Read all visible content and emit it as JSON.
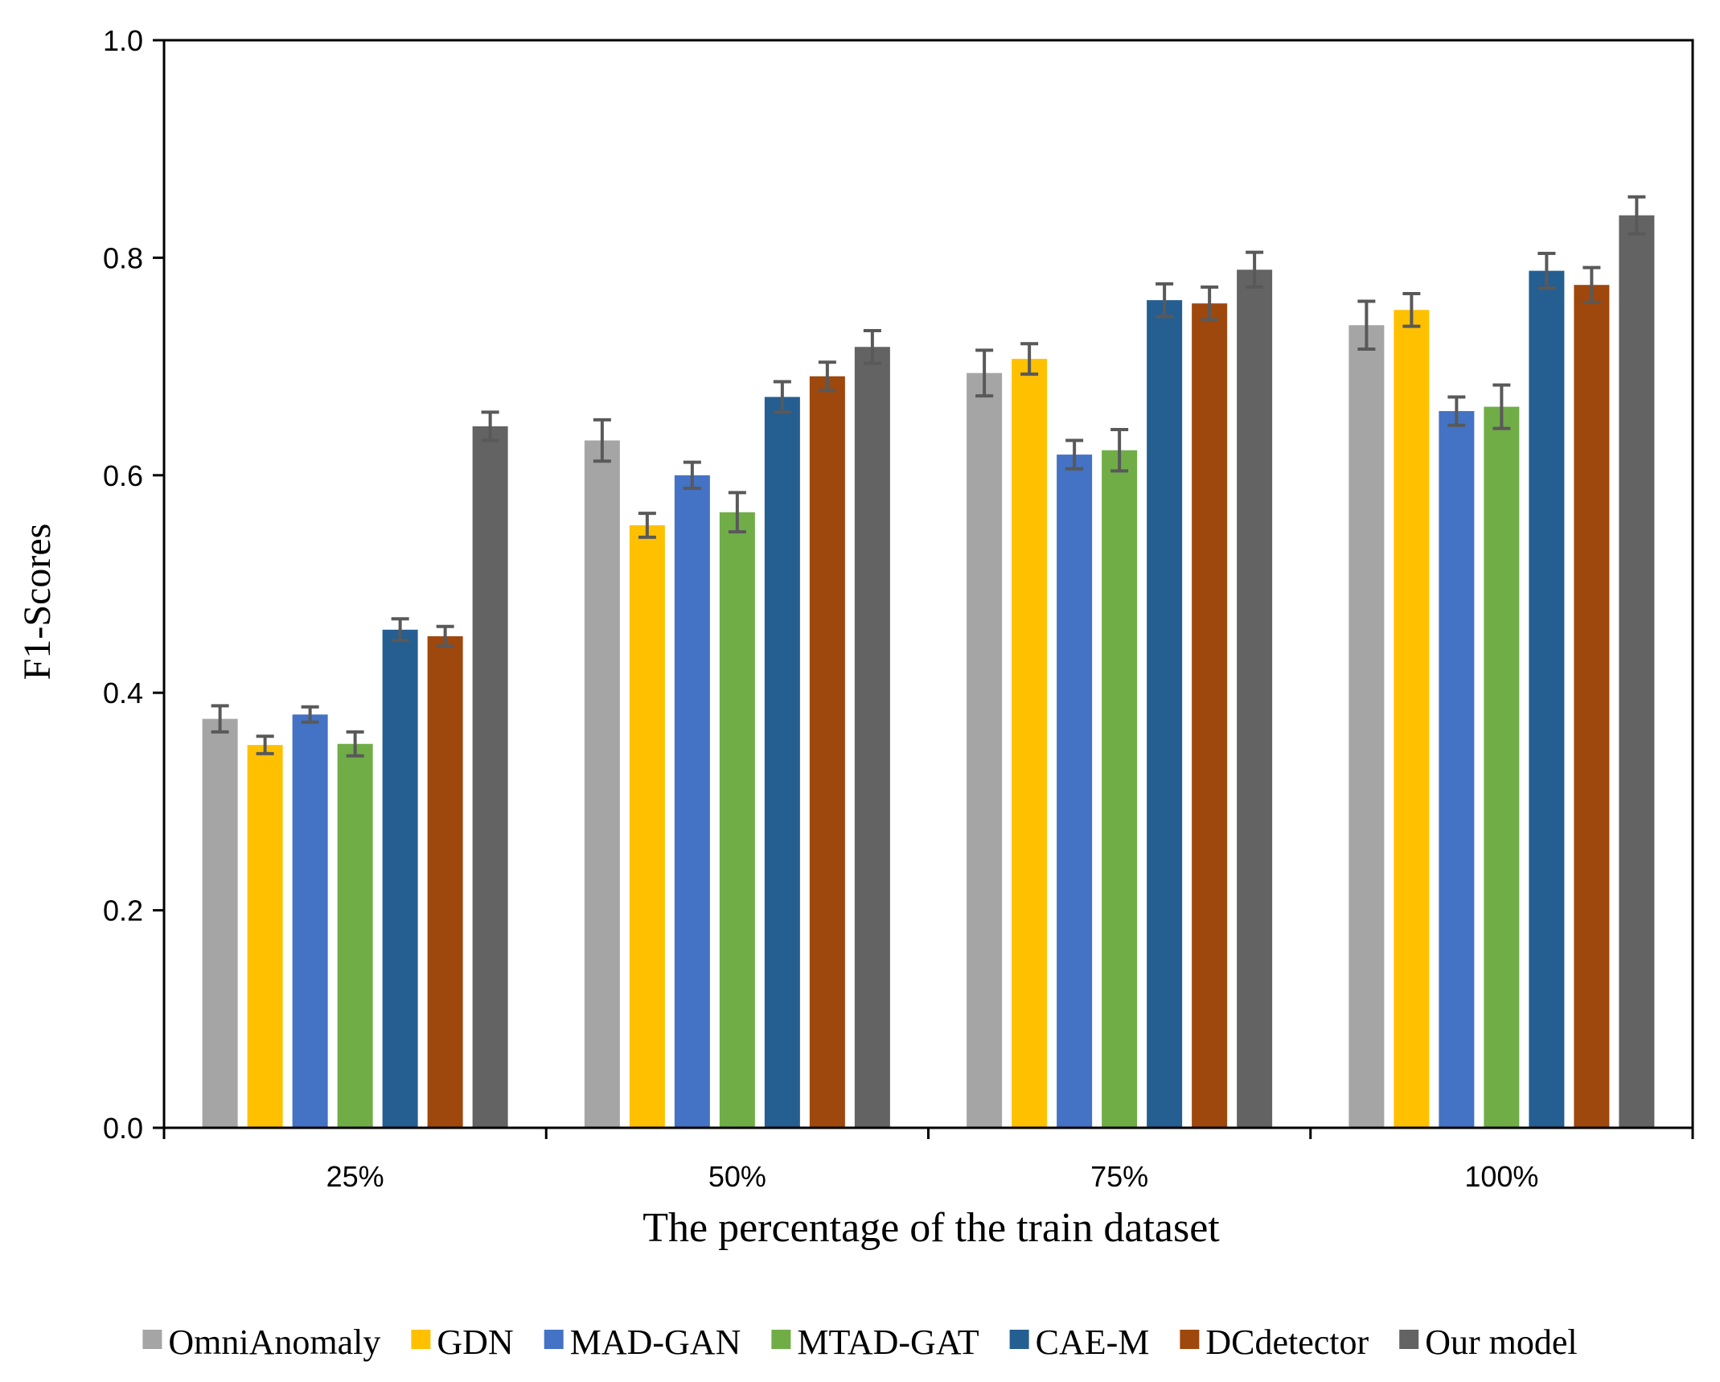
{
  "chart_data": {
    "type": "bar",
    "title": "",
    "xlabel": "The percentage of the train dataset",
    "ylabel": "F1-Scores",
    "ylim": [
      0,
      1.0
    ],
    "yticks": [
      "0.0",
      "0.2",
      "0.4",
      "0.6",
      "0.8",
      "1.0"
    ],
    "grid": false,
    "legend_position": "bottom",
    "categories": [
      "25%",
      "50%",
      "75%",
      "100%"
    ],
    "series": [
      {
        "name": "OmniAnomaly",
        "color": "#A5A5A5",
        "values": [
          0.376,
          0.632,
          0.694,
          0.738
        ],
        "errors": [
          0.012,
          0.019,
          0.021,
          0.022
        ]
      },
      {
        "name": "GDN",
        "color": "#FFC000",
        "values": [
          0.352,
          0.554,
          0.707,
          0.752
        ],
        "errors": [
          0.008,
          0.011,
          0.014,
          0.015
        ]
      },
      {
        "name": "MAD-GAN",
        "color": "#4472C4",
        "values": [
          0.38,
          0.6,
          0.619,
          0.659
        ],
        "errors": [
          0.007,
          0.012,
          0.013,
          0.013
        ]
      },
      {
        "name": "MTAD-GAT",
        "color": "#70AD47",
        "values": [
          0.353,
          0.566,
          0.623,
          0.663
        ],
        "errors": [
          0.011,
          0.018,
          0.019,
          0.02
        ]
      },
      {
        "name": "CAE-M",
        "color": "#255E91",
        "values": [
          0.458,
          0.672,
          0.761,
          0.788
        ],
        "errors": [
          0.01,
          0.014,
          0.015,
          0.016
        ]
      },
      {
        "name": "DCdetector",
        "color": "#9E480E",
        "values": [
          0.452,
          0.691,
          0.758,
          0.775
        ],
        "errors": [
          0.009,
          0.013,
          0.015,
          0.016
        ]
      },
      {
        "name": "Our model",
        "color": "#636363",
        "values": [
          0.645,
          0.718,
          0.789,
          0.839
        ],
        "errors": [
          0.013,
          0.015,
          0.016,
          0.017
        ]
      }
    ]
  }
}
